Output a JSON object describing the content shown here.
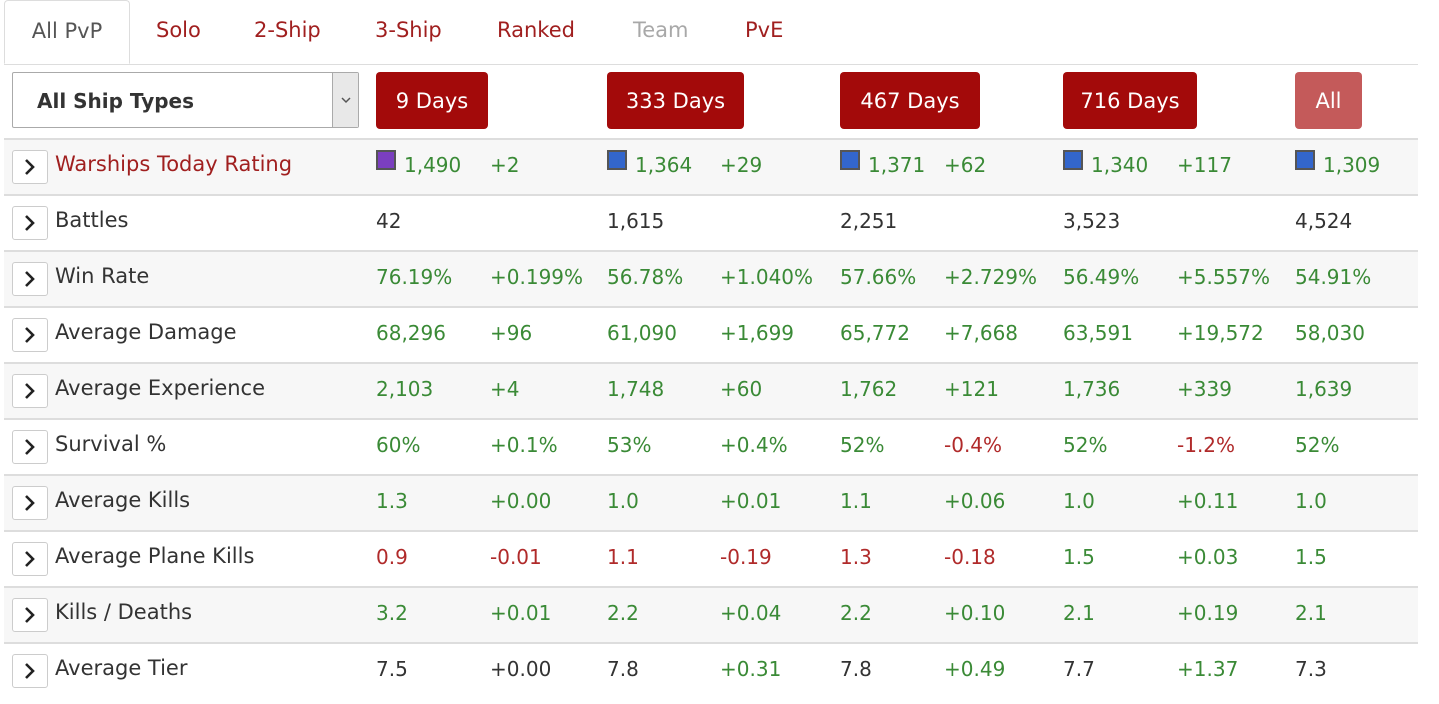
{
  "tabs": [
    {
      "label": "All PvP",
      "state": "active"
    },
    {
      "label": "Solo",
      "state": "normal"
    },
    {
      "label": "2-Ship",
      "state": "normal"
    },
    {
      "label": "3-Ship",
      "state": "normal"
    },
    {
      "label": "Ranked",
      "state": "normal"
    },
    {
      "label": "Team",
      "state": "disabled"
    },
    {
      "label": "PvE",
      "state": "normal"
    }
  ],
  "ship_type_select": {
    "value": "All Ship Types"
  },
  "periods": [
    "9 Days",
    "333 Days",
    "467 Days",
    "716 Days",
    "All"
  ],
  "colors": {
    "accent": "#a30a0a",
    "accent_light": "#c45a5a",
    "positive": "#3a8a36",
    "negative": "#b02a2a",
    "rating_purple": "#7b3fbf",
    "rating_blue": "#3366cc"
  },
  "rows": [
    {
      "label": "Warships Today Rating",
      "link": true,
      "cells": [
        {
          "value": "1,490",
          "delta": "+2",
          "color": "g",
          "dcolor": "g",
          "badge": "#7b3fbf"
        },
        {
          "value": "1,364",
          "delta": "+29",
          "color": "g",
          "dcolor": "g",
          "badge": "#3366cc"
        },
        {
          "value": "1,371",
          "delta": "+62",
          "color": "g",
          "dcolor": "g",
          "badge": "#3366cc"
        },
        {
          "value": "1,340",
          "delta": "+117",
          "color": "g",
          "dcolor": "g",
          "badge": "#3366cc"
        },
        {
          "value": "1,309",
          "color": "g",
          "badge": "#3366cc"
        }
      ]
    },
    {
      "label": "Battles",
      "cells": [
        {
          "value": "42",
          "color": "n"
        },
        {
          "value": "1,615",
          "color": "n"
        },
        {
          "value": "2,251",
          "color": "n"
        },
        {
          "value": "3,523",
          "color": "n"
        },
        {
          "value": "4,524",
          "color": "n"
        }
      ]
    },
    {
      "label": "Win Rate",
      "cells": [
        {
          "value": "76.19%",
          "delta": "+0.199%",
          "color": "g",
          "dcolor": "g"
        },
        {
          "value": "56.78%",
          "delta": "+1.040%",
          "color": "g",
          "dcolor": "g"
        },
        {
          "value": "57.66%",
          "delta": "+2.729%",
          "color": "g",
          "dcolor": "g"
        },
        {
          "value": "56.49%",
          "delta": "+5.557%",
          "color": "g",
          "dcolor": "g"
        },
        {
          "value": "54.91%",
          "color": "g"
        }
      ]
    },
    {
      "label": "Average Damage",
      "cells": [
        {
          "value": "68,296",
          "delta": "+96",
          "color": "g",
          "dcolor": "g"
        },
        {
          "value": "61,090",
          "delta": "+1,699",
          "color": "g",
          "dcolor": "g"
        },
        {
          "value": "65,772",
          "delta": "+7,668",
          "color": "g",
          "dcolor": "g"
        },
        {
          "value": "63,591",
          "delta": "+19,572",
          "color": "g",
          "dcolor": "g"
        },
        {
          "value": "58,030",
          "color": "g"
        }
      ]
    },
    {
      "label": "Average Experience",
      "cells": [
        {
          "value": "2,103",
          "delta": "+4",
          "color": "g",
          "dcolor": "g"
        },
        {
          "value": "1,748",
          "delta": "+60",
          "color": "g",
          "dcolor": "g"
        },
        {
          "value": "1,762",
          "delta": "+121",
          "color": "g",
          "dcolor": "g"
        },
        {
          "value": "1,736",
          "delta": "+339",
          "color": "g",
          "dcolor": "g"
        },
        {
          "value": "1,639",
          "color": "g"
        }
      ]
    },
    {
      "label": "Survival %",
      "cells": [
        {
          "value": "60%",
          "delta": "+0.1%",
          "color": "g",
          "dcolor": "g"
        },
        {
          "value": "53%",
          "delta": "+0.4%",
          "color": "g",
          "dcolor": "g"
        },
        {
          "value": "52%",
          "delta": "-0.4%",
          "color": "g",
          "dcolor": "r"
        },
        {
          "value": "52%",
          "delta": "-1.2%",
          "color": "g",
          "dcolor": "r"
        },
        {
          "value": "52%",
          "color": "g"
        }
      ]
    },
    {
      "label": "Average Kills",
      "cells": [
        {
          "value": "1.3",
          "delta": "+0.00",
          "color": "g",
          "dcolor": "g"
        },
        {
          "value": "1.0",
          "delta": "+0.01",
          "color": "g",
          "dcolor": "g"
        },
        {
          "value": "1.1",
          "delta": "+0.06",
          "color": "g",
          "dcolor": "g"
        },
        {
          "value": "1.0",
          "delta": "+0.11",
          "color": "g",
          "dcolor": "g"
        },
        {
          "value": "1.0",
          "color": "g"
        }
      ]
    },
    {
      "label": "Average Plane Kills",
      "cells": [
        {
          "value": "0.9",
          "delta": "-0.01",
          "color": "r",
          "dcolor": "r"
        },
        {
          "value": "1.1",
          "delta": "-0.19",
          "color": "r",
          "dcolor": "r"
        },
        {
          "value": "1.3",
          "delta": "-0.18",
          "color": "r",
          "dcolor": "r"
        },
        {
          "value": "1.5",
          "delta": "+0.03",
          "color": "g",
          "dcolor": "g"
        },
        {
          "value": "1.5",
          "color": "g"
        }
      ]
    },
    {
      "label": "Kills / Deaths",
      "cells": [
        {
          "value": "3.2",
          "delta": "+0.01",
          "color": "g",
          "dcolor": "g"
        },
        {
          "value": "2.2",
          "delta": "+0.04",
          "color": "g",
          "dcolor": "g"
        },
        {
          "value": "2.2",
          "delta": "+0.10",
          "color": "g",
          "dcolor": "g"
        },
        {
          "value": "2.1",
          "delta": "+0.19",
          "color": "g",
          "dcolor": "g"
        },
        {
          "value": "2.1",
          "color": "g"
        }
      ]
    },
    {
      "label": "Average Tier",
      "cells": [
        {
          "value": "7.5",
          "delta": "+0.00",
          "color": "n",
          "dcolor": "n"
        },
        {
          "value": "7.8",
          "delta": "+0.31",
          "color": "n",
          "dcolor": "g"
        },
        {
          "value": "7.8",
          "delta": "+0.49",
          "color": "n",
          "dcolor": "g"
        },
        {
          "value": "7.7",
          "delta": "+1.37",
          "color": "n",
          "dcolor": "g"
        },
        {
          "value": "7.3",
          "color": "n"
        }
      ]
    }
  ]
}
